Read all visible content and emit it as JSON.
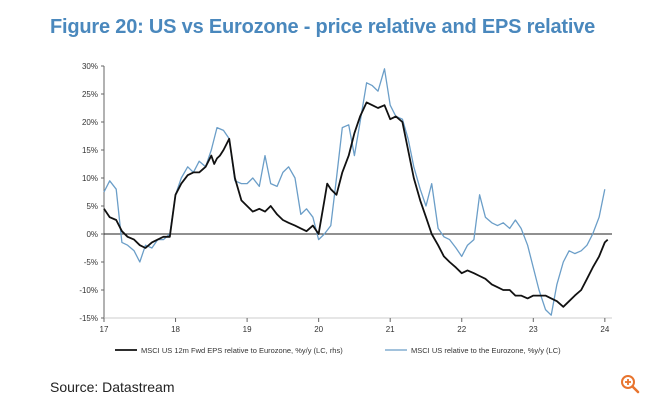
{
  "figure": {
    "title": "Figure 20: US vs Eurozone - price relative and EPS relative",
    "source": "Source: Datastream"
  },
  "chart_data": {
    "type": "line",
    "title": "Figure 20: US vs Eurozone - price relative and EPS relative",
    "xlabel": "",
    "ylabel": "",
    "xlim": [
      17,
      24.1
    ],
    "ylim": [
      -15,
      30
    ],
    "x_ticks": [
      17,
      18,
      19,
      20,
      21,
      22,
      23,
      24
    ],
    "x_tick_labels": [
      "17",
      "18",
      "19",
      "20",
      "21",
      "22",
      "23",
      "24"
    ],
    "y_ticks": [
      30,
      25,
      20,
      15,
      10,
      5,
      0,
      -5,
      -10,
      -15
    ],
    "y_tick_labels": [
      "30%",
      "25%",
      "20%",
      "15%",
      "10%",
      "5%",
      "0%",
      "-5%",
      "-10%",
      "-15%"
    ],
    "legend_position": "bottom",
    "series": [
      {
        "name": "MSCI US 12m Fwd EPS relative to Eurozone, %y/y (LC, rhs)",
        "color": "#111111",
        "x": [
          17.0,
          17.08,
          17.17,
          17.25,
          17.33,
          17.42,
          17.5,
          17.58,
          17.67,
          17.75,
          17.83,
          17.92,
          18.0,
          18.08,
          18.17,
          18.25,
          18.33,
          18.42,
          18.5,
          18.54,
          18.58,
          18.62,
          18.67,
          18.75,
          18.83,
          18.92,
          19.0,
          19.08,
          19.17,
          19.25,
          19.33,
          19.42,
          19.5,
          19.58,
          19.67,
          19.75,
          19.83,
          19.92,
          20.0,
          20.04,
          20.08,
          20.12,
          20.17,
          20.25,
          20.33,
          20.42,
          20.5,
          20.58,
          20.67,
          20.75,
          20.83,
          20.92,
          21.0,
          21.08,
          21.17,
          21.25,
          21.33,
          21.42,
          21.5,
          21.58,
          21.67,
          21.75,
          21.83,
          21.92,
          22.0,
          22.08,
          22.17,
          22.25,
          22.33,
          22.42,
          22.5,
          22.58,
          22.67,
          22.75,
          22.83,
          22.92,
          23.0,
          23.08,
          23.17,
          23.25,
          23.33,
          23.42,
          23.5,
          23.58,
          23.67,
          23.75,
          23.83,
          23.92,
          24.0,
          24.04
        ],
        "values": [
          4.5,
          3,
          2.5,
          0.5,
          -0.5,
          -1,
          -2,
          -2.5,
          -1.5,
          -1,
          -0.5,
          -0.5,
          7,
          9,
          10.5,
          11,
          11,
          12,
          14,
          12.5,
          13.5,
          14,
          15,
          17,
          10,
          6,
          5,
          4,
          4.5,
          4,
          5,
          3.5,
          2.5,
          2,
          1.5,
          1,
          0.5,
          1.5,
          0,
          3,
          6,
          9,
          8,
          7,
          11,
          14,
          18,
          21,
          23.5,
          23,
          22.5,
          23,
          20.5,
          21,
          20,
          15,
          10,
          6,
          3,
          0,
          -2,
          -4,
          -5,
          -6,
          -7,
          -6.5,
          -7,
          -7.5,
          -8,
          -9,
          -9.5,
          -10,
          -10,
          -11,
          -11,
          -11.5,
          -11,
          -11,
          -11,
          -11.5,
          -12,
          -13,
          -12,
          -11,
          -10,
          -8,
          -6,
          -4,
          -1.5,
          -1
        ]
      },
      {
        "name": "MSCI US relative to the Eurozone, %y/y (LC)",
        "color": "#6b9ec8",
        "x": [
          17.0,
          17.08,
          17.17,
          17.25,
          17.33,
          17.42,
          17.5,
          17.58,
          17.67,
          17.75,
          17.83,
          17.92,
          18.0,
          18.08,
          18.17,
          18.25,
          18.33,
          18.42,
          18.5,
          18.58,
          18.67,
          18.75,
          18.83,
          18.92,
          19.0,
          19.08,
          19.17,
          19.25,
          19.33,
          19.42,
          19.5,
          19.58,
          19.67,
          19.75,
          19.83,
          19.92,
          20.0,
          20.08,
          20.17,
          20.25,
          20.33,
          20.42,
          20.5,
          20.58,
          20.67,
          20.75,
          20.83,
          20.92,
          21.0,
          21.08,
          21.17,
          21.25,
          21.33,
          21.42,
          21.5,
          21.58,
          21.67,
          21.75,
          21.83,
          21.92,
          22.0,
          22.08,
          22.17,
          22.25,
          22.33,
          22.42,
          22.5,
          22.58,
          22.67,
          22.75,
          22.83,
          22.92,
          23.0,
          23.08,
          23.17,
          23.25,
          23.33,
          23.42,
          23.5,
          23.58,
          23.67,
          23.75,
          23.83,
          23.92,
          24.0
        ],
        "values": [
          7.5,
          9.5,
          8,
          -1.5,
          -2,
          -3,
          -5,
          -2,
          -2.5,
          -1,
          -1,
          0,
          7,
          10,
          12,
          11,
          13,
          12,
          15,
          19,
          18.5,
          17,
          9.5,
          9,
          9,
          10,
          8.5,
          14,
          9,
          8.5,
          11,
          12,
          10,
          3.5,
          4.5,
          3,
          -1,
          0,
          1.5,
          10,
          19,
          19.5,
          14,
          20,
          27,
          26.5,
          25.5,
          29.5,
          23,
          21,
          20.5,
          17,
          12,
          8,
          5,
          9,
          1,
          -0.5,
          -1,
          -2.5,
          -4,
          -2,
          -1,
          7,
          3,
          2,
          1.5,
          2,
          1,
          2.5,
          1,
          -2,
          -6,
          -10,
          -13.5,
          -14.5,
          -9,
          -5,
          -3,
          -3.5,
          -3,
          -2,
          0,
          3,
          8
        ]
      }
    ]
  }
}
